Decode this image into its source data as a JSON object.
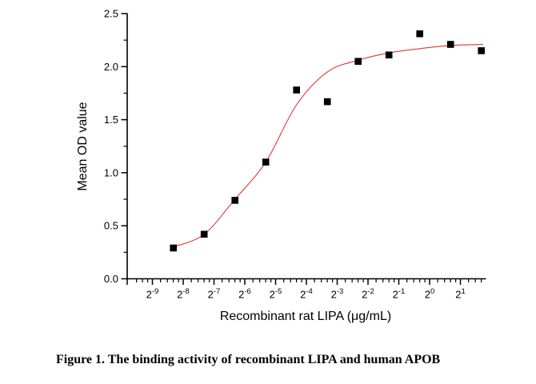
{
  "figure": {
    "caption": "Figure 1. The binding activity of recombinant LIPA and human APOB"
  },
  "chart_data": {
    "type": "scatter",
    "title": "",
    "xlabel": "Recombinant rat LIPA (μg/mL)",
    "ylabel": "Mean OD value",
    "x_scale": "log2",
    "x_tick_base": "2",
    "x_tick_exponents": [
      -9,
      -8,
      -7,
      -6,
      -5,
      -4,
      -3,
      -2,
      -1,
      0,
      1
    ],
    "y_tick_labels": [
      "0.0",
      "0.5",
      "1.0",
      "1.5",
      "2.0",
      "2.5"
    ],
    "y_tick_values": [
      0,
      0.5,
      1.0,
      1.5,
      2.0,
      2.5
    ],
    "ylim": [
      0,
      2.5
    ],
    "xlim_log2": [
      -9.84,
      1.83
    ],
    "grid": false,
    "legend": false,
    "colors": {
      "axis": "#000000",
      "marker": "#000000",
      "fit_curve": "#e13535"
    },
    "series": [
      {
        "name": "Mean OD value",
        "marker": "square",
        "color": "#000000",
        "x_log2": [
          -8.32,
          -7.32,
          -6.32,
          -5.32,
          -4.32,
          -3.32,
          -2.32,
          -1.32,
          -0.32,
          0.68,
          1.68
        ],
        "x_ug_per_ml": [
          0.003125,
          0.00625,
          0.0125,
          0.025,
          0.05,
          0.1,
          0.2,
          0.4,
          0.8,
          1.6,
          3.2
        ],
        "od": [
          0.29,
          0.42,
          0.74,
          1.1,
          1.78,
          1.67,
          2.05,
          2.11,
          2.31,
          2.21,
          2.15
        ]
      }
    ],
    "fit_curve": {
      "type": "4PL-sigmoid",
      "color": "#e13535",
      "x_log2": [
        -8.32,
        -7.32,
        -6.32,
        -5.32,
        -4.32,
        -3.32,
        -2.32,
        -1.32,
        -0.32,
        0.68,
        1.74
      ],
      "od": [
        0.3,
        0.42,
        0.75,
        1.1,
        1.64,
        1.95,
        2.06,
        2.13,
        2.17,
        2.2,
        2.21
      ]
    }
  }
}
